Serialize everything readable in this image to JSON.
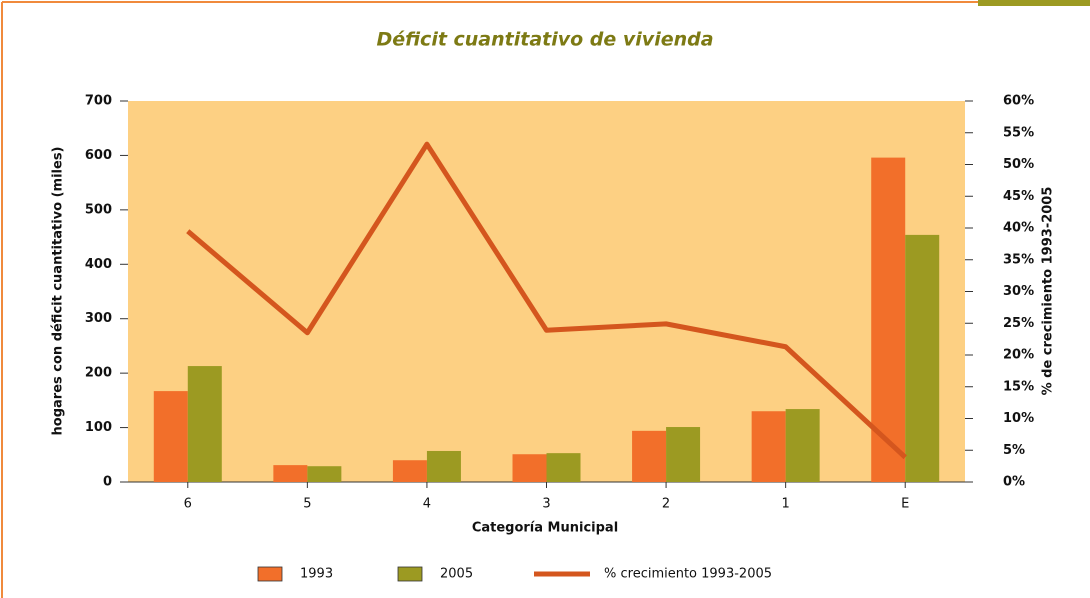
{
  "chart_data": {
    "type": "bar",
    "title": "Déficit cuantitativo de vivienda",
    "xlabel": "Categoría Municipal",
    "ylabel": "hogares con déficit cuantitativo (miles)",
    "y2label": "% de crecimiento 1993-2005",
    "categories": [
      "6",
      "5",
      "4",
      "3",
      "2",
      "1",
      "E"
    ],
    "series": [
      {
        "name": "1993",
        "color": "#f26f2a",
        "type": "bar",
        "values": [
          167,
          31,
          40,
          51,
          94,
          130,
          596
        ]
      },
      {
        "name": "2005",
        "color": "#9c9a22",
        "type": "bar",
        "values": [
          213,
          29,
          57,
          53,
          101,
          134,
          454
        ]
      },
      {
        "name": "% crecimiento 1993-2005",
        "color": "#d4561e",
        "type": "line",
        "axis": "y2",
        "values": [
          39.5,
          23.5,
          53.2,
          23.9,
          24.9,
          21.3,
          3.9
        ]
      }
    ],
    "ylim": [
      0,
      700
    ],
    "yticks": [
      0,
      100,
      200,
      300,
      400,
      500,
      600,
      700
    ],
    "y2lim": [
      0,
      60
    ],
    "y2ticks": [
      {
        "value": 0,
        "label": "0%"
      },
      {
        "value": 5,
        "label": "5%"
      },
      {
        "value": 10,
        "label": "10%"
      },
      {
        "value": 15,
        "label": "15%"
      },
      {
        "value": 20,
        "label": "20%"
      },
      {
        "value": 25,
        "label": "25%"
      },
      {
        "value": 30,
        "label": "30%"
      },
      {
        "value": 35,
        "label": "35%"
      },
      {
        "value": 40,
        "label": "40%"
      },
      {
        "value": 45,
        "label": "45%"
      },
      {
        "value": 50,
        "label": "50%"
      },
      {
        "value": 55,
        "label": "55%"
      },
      {
        "value": 60,
        "label": "60%"
      }
    ],
    "plot_background": "#fdd083"
  }
}
